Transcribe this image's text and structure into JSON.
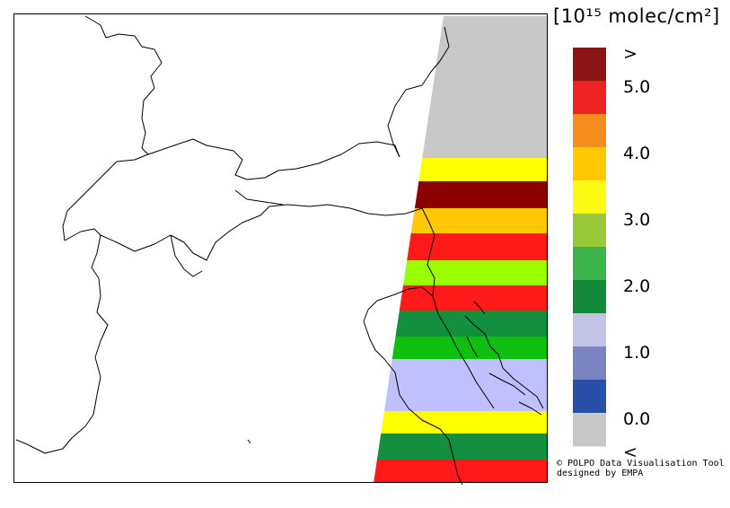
{
  "colorbar": {
    "unit": "[10¹⁵ molec/cm²]",
    "colors": [
      "#c8c8c8",
      "#2a4fa8",
      "#7b84c0",
      "#c2c3e6",
      "#15883a",
      "#3cb44b",
      "#9ac83b",
      "#fafa14",
      "#ffc800",
      "#f58c1e",
      "#f02323",
      "#8b1414"
    ],
    "labels": [
      {
        "text": ">",
        "slot": 0
      },
      {
        "text": "5.0",
        "slot": 1
      },
      {
        "text": "4.0",
        "slot": 3
      },
      {
        "text": "3.0",
        "slot": 5
      },
      {
        "text": "2.0",
        "slot": 7
      },
      {
        "text": "1.0",
        "slot": 9
      },
      {
        "text": "0.0",
        "slot": 11
      },
      {
        "text": "<",
        "slot": 12
      }
    ]
  },
  "swath": {
    "bands": [
      {
        "color": "#c8c8c8",
        "category": "< 0.0 / no data"
      },
      {
        "color": "#ffff00",
        "category": "3.0–3.5"
      },
      {
        "color": "#8b0000",
        "category": "> 5.0"
      },
      {
        "color": "#ffc800",
        "category": "4.0–4.5"
      },
      {
        "color": "#ff1a1a",
        "category": "4.5–5.0"
      },
      {
        "color": "#99ff00",
        "category": "2.5–3.0"
      },
      {
        "color": "#ff1a1a",
        "category": "4.5–5.0"
      },
      {
        "color": "#129040",
        "category": "1.5–2.0"
      },
      {
        "color": "#10c010",
        "category": "2.0–2.5"
      },
      {
        "color": "#c0c0ff",
        "category": "0.5–1.0"
      },
      {
        "color": "#ffff00",
        "category": "3.0–3.5"
      },
      {
        "color": "#129040",
        "category": "1.5–2.0"
      },
      {
        "color": "#ff1a1a",
        "category": "4.5–5.0"
      }
    ]
  },
  "credit": {
    "line1": "© POLPO Data Visualisation Tool",
    "line2": "designed by EMPA"
  }
}
